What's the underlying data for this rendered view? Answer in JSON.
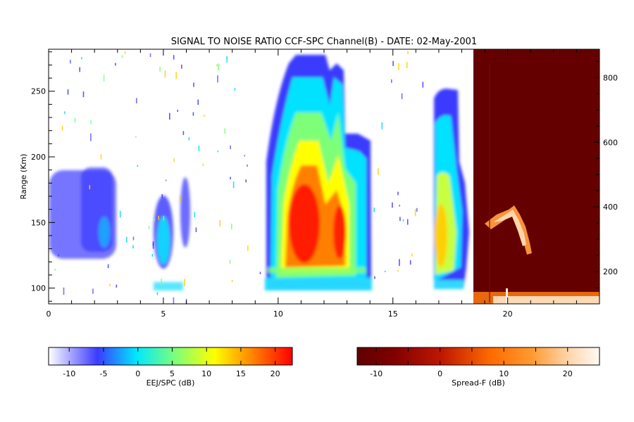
{
  "chart_data": {
    "type": "heatmap",
    "title": "SIGNAL TO NOISE RATIO CCF-SPC Channel(B) - DATE: 02-May-2001",
    "xlabel": "",
    "ylabel": "Range (Km)",
    "xlim": [
      0,
      24
    ],
    "ylim": [
      88,
      282
    ],
    "y2lim": [
      100,
      880
    ],
    "x_ticks": [
      "0",
      "5",
      "10",
      "15",
      "20"
    ],
    "y_ticks": [
      "100",
      "150",
      "200",
      "250"
    ],
    "y2_ticks": [
      "200",
      "400",
      "600",
      "800"
    ],
    "grid": false,
    "colorbars": [
      {
        "name": "EEJ/SPC",
        "label": "EEJ/SPC (dB)",
        "range": [
          -13,
          22.5
        ],
        "ticks": [
          "-10",
          "-5",
          "0",
          "5",
          "10",
          "15",
          "20"
        ],
        "colormap": [
          "#ffffff",
          "#3b3bff",
          "#00e8ff",
          "#7dff78",
          "#ffff00",
          "#ff8000",
          "#ff0000"
        ]
      },
      {
        "name": "Spread-F",
        "label": "Spread-F (dB)",
        "range": [
          -13,
          25
        ],
        "ticks": [
          "-10",
          "0",
          "10",
          "20"
        ],
        "colormap": [
          "#600000",
          "#990000",
          "#d42a00",
          "#ff7000",
          "#ffa850",
          "#ffe0c0",
          "#fffaf4"
        ]
      }
    ],
    "regions": [
      {
        "name": "EEJ",
        "x": [
          0,
          2.8
        ],
        "range": [
          118,
          190
        ],
        "peak_snr": -3
      },
      {
        "name": "EEJ",
        "x": [
          4.6,
          6.1
        ],
        "range": [
          98,
          175
        ],
        "peak_snr": 0
      },
      {
        "name": "EEJ",
        "x": [
          9.4,
          14.0
        ],
        "range": [
          97,
          278
        ],
        "peak_snr": 22
      },
      {
        "name": "EEJ",
        "x": [
          16.7,
          18.2
        ],
        "range": [
          97,
          252
        ],
        "peak_snr": 14
      },
      {
        "name": "Spread-F",
        "x": [
          18.5,
          24
        ],
        "height": [
          280,
          420
        ],
        "peak_snr": 15
      }
    ]
  }
}
